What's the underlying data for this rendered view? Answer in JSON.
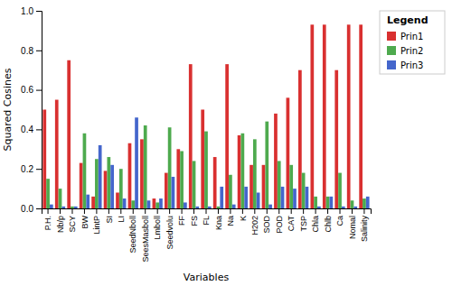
{
  "chart_data": {
    "type": "bar",
    "categories": [
      "P.H.",
      "Nb/p",
      "SCY",
      "BW",
      "LintP",
      "SI",
      "LI",
      "SeedNboll",
      "SeesMasboll",
      "Lmboll",
      "Seedvolu",
      "FF",
      "FS",
      "FL",
      "Kna",
      "Na",
      "K",
      "H202",
      "SOD",
      "POD",
      "CAT",
      "TSP",
      "Chla",
      "Chlb",
      "Ca",
      "Nomal",
      "Salinity"
    ],
    "series": [
      {
        "name": "Prin1",
        "color": "#d93030",
        "values": [
          0.5,
          0.55,
          0.75,
          0.23,
          0.06,
          0.19,
          0.08,
          0.33,
          0.35,
          0.05,
          0.18,
          0.3,
          0.73,
          0.5,
          0.26,
          0.73,
          0.37,
          0.22,
          0.22,
          0.48,
          0.56,
          0.7,
          0.93,
          0.93,
          0.7,
          0.93,
          0.93
        ]
      },
      {
        "name": "Prin2",
        "color": "#4eaa4e",
        "values": [
          0.15,
          0.1,
          0.01,
          0.38,
          0.25,
          0.26,
          0.2,
          0.04,
          0.42,
          0.03,
          0.41,
          0.29,
          0.24,
          0.39,
          0.01,
          0.17,
          0.38,
          0.35,
          0.44,
          0.24,
          0.22,
          0.18,
          0.06,
          0.06,
          0.18,
          0.04,
          0.05
        ]
      },
      {
        "name": "Prin3",
        "color": "#4466cc",
        "values": [
          0.02,
          0.01,
          0.01,
          0.07,
          0.32,
          0.22,
          0.05,
          0.46,
          0.04,
          0.05,
          0.16,
          0.03,
          0.01,
          0.01,
          0.11,
          0.02,
          0.11,
          0.08,
          0.02,
          0.11,
          0.1,
          0.11,
          0.01,
          0.06,
          0.01,
          0.01,
          0.06
        ]
      }
    ],
    "xlabel": "Variables",
    "ylabel": "Squared Cosines",
    "ylim": [
      0,
      1.0
    ],
    "yticks": [
      {
        "value": 0.0,
        "label": "0.0"
      },
      0.2,
      0.4,
      0.6,
      0.8,
      {
        "value": 1.0,
        "label": "1.0"
      }
    ],
    "legend_title": "Legend",
    "legend": "right",
    "grid": false
  }
}
